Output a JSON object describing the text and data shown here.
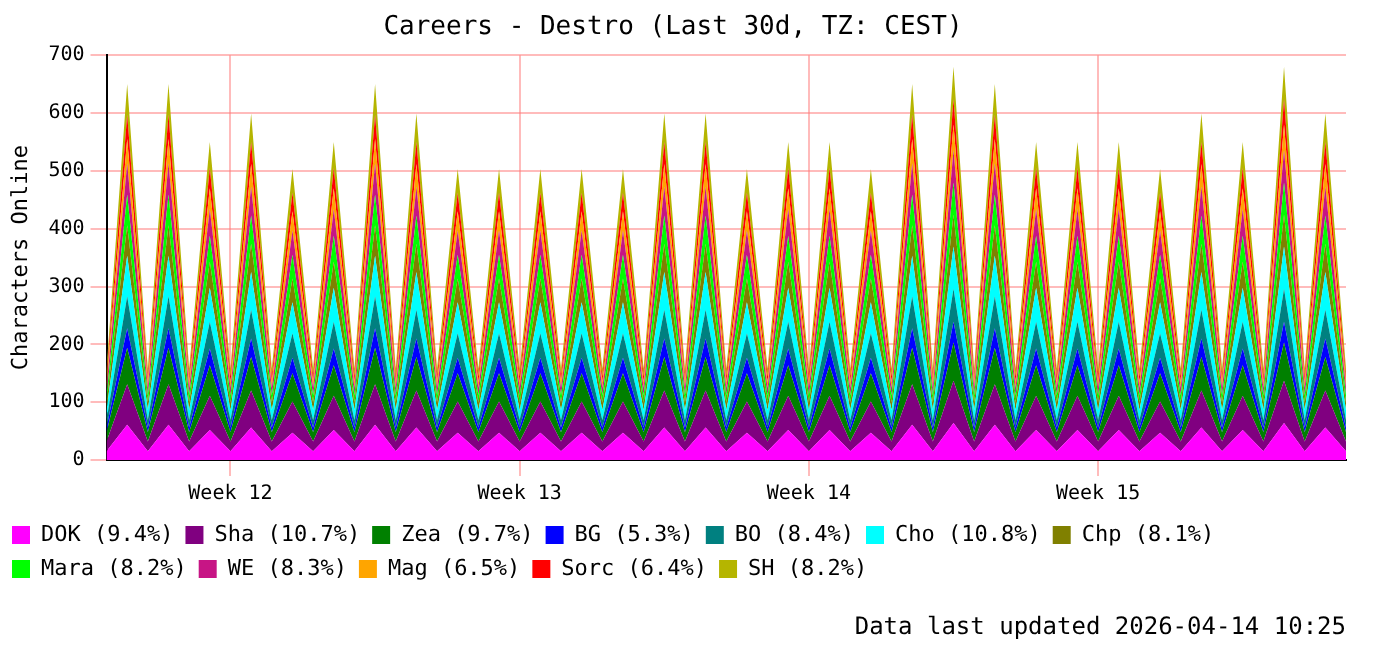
{
  "chart_data": {
    "type": "area",
    "title": "Careers - Destro (Last 30d, TZ: CEST)",
    "ylabel": "Characters Online",
    "stacked": true,
    "grid": true,
    "legend": "bottom",
    "annotations": [
      "Data last updated 2026-04-14 10:25"
    ],
    "categories": [
      null,
      null,
      null,
      null,
      null,
      null,
      "Week 12",
      null,
      null,
      null,
      null,
      null,
      null,
      null,
      null,
      null,
      null,
      null,
      null,
      null,
      "Week 13",
      null,
      null,
      null,
      null,
      null,
      null,
      null,
      null,
      null,
      null,
      null,
      null,
      null,
      "Week 14",
      null,
      null,
      null,
      null,
      null,
      null,
      null,
      null,
      null,
      null,
      null,
      null,
      null,
      "Week 15",
      null,
      null,
      null,
      null,
      null,
      null,
      null,
      null,
      null,
      null,
      null,
      null
    ],
    "ylim": [
      0,
      700
    ],
    "yticks": [
      0,
      100,
      200,
      300,
      400,
      500,
      600,
      700
    ],
    "series": [
      {
        "name": "DOK (9.4%)",
        "color": "#ff00ff",
        "values": [
          15,
          61,
          15,
          61,
          15,
          52,
          15,
          56,
          15,
          47,
          15,
          52,
          15,
          61,
          15,
          56,
          15,
          47,
          15,
          47,
          15,
          47,
          15,
          47,
          15,
          47,
          15,
          56,
          15,
          56,
          15,
          47,
          15,
          52,
          15,
          52,
          15,
          47,
          15,
          61,
          15,
          64,
          15,
          61,
          15,
          52,
          15,
          52,
          15,
          52,
          15,
          47,
          15,
          56,
          15,
          52,
          15,
          64,
          15,
          56,
          15
        ]
      },
      {
        "name": "Sha (10.7%)",
        "color": "#800080",
        "values": [
          17,
          70,
          17,
          70,
          17,
          59,
          17,
          64,
          17,
          54,
          17,
          59,
          17,
          70,
          17,
          64,
          17,
          54,
          17,
          54,
          17,
          54,
          17,
          54,
          17,
          54,
          17,
          64,
          17,
          64,
          17,
          54,
          17,
          59,
          17,
          59,
          17,
          54,
          17,
          70,
          17,
          73,
          17,
          70,
          17,
          59,
          17,
          59,
          17,
          59,
          17,
          54,
          17,
          64,
          17,
          59,
          17,
          73,
          17,
          64,
          17
        ]
      },
      {
        "name": "Zea (9.7%)",
        "color": "#008000",
        "values": [
          16,
          63,
          16,
          63,
          16,
          53,
          16,
          58,
          16,
          49,
          16,
          53,
          16,
          63,
          16,
          58,
          16,
          49,
          16,
          49,
          16,
          49,
          16,
          49,
          16,
          49,
          16,
          58,
          16,
          58,
          16,
          49,
          16,
          53,
          16,
          53,
          16,
          49,
          16,
          63,
          16,
          66,
          16,
          63,
          16,
          53,
          16,
          53,
          16,
          53,
          16,
          49,
          16,
          58,
          16,
          53,
          16,
          66,
          16,
          58,
          16
        ]
      },
      {
        "name": "BG (5.3%)",
        "color": "#0000ff",
        "values": [
          8,
          34,
          8,
          34,
          8,
          29,
          8,
          32,
          8,
          27,
          8,
          29,
          8,
          34,
          8,
          32,
          8,
          27,
          8,
          27,
          8,
          27,
          8,
          27,
          8,
          27,
          8,
          32,
          8,
          32,
          8,
          27,
          8,
          29,
          8,
          29,
          8,
          27,
          8,
          34,
          8,
          36,
          8,
          34,
          8,
          29,
          8,
          29,
          8,
          29,
          8,
          27,
          8,
          32,
          8,
          29,
          8,
          36,
          8,
          32,
          8
        ]
      },
      {
        "name": "BO (8.4%)",
        "color": "#008080",
        "values": [
          13,
          55,
          13,
          55,
          13,
          46,
          13,
          50,
          13,
          42,
          13,
          46,
          13,
          55,
          13,
          50,
          13,
          42,
          13,
          42,
          13,
          42,
          13,
          42,
          13,
          42,
          13,
          50,
          13,
          50,
          13,
          42,
          13,
          46,
          13,
          46,
          13,
          42,
          13,
          55,
          13,
          57,
          13,
          55,
          13,
          46,
          13,
          46,
          13,
          46,
          13,
          42,
          13,
          50,
          13,
          46,
          13,
          57,
          13,
          50,
          13
        ]
      },
      {
        "name": "Cho (10.8%)",
        "color": "#00ffff",
        "values": [
          17,
          70,
          17,
          70,
          17,
          59,
          17,
          65,
          17,
          54,
          17,
          59,
          17,
          70,
          17,
          65,
          17,
          54,
          17,
          54,
          17,
          54,
          17,
          54,
          17,
          54,
          17,
          65,
          17,
          65,
          17,
          54,
          17,
          59,
          17,
          59,
          17,
          54,
          17,
          70,
          17,
          73,
          17,
          70,
          17,
          59,
          17,
          59,
          17,
          59,
          17,
          54,
          17,
          65,
          17,
          59,
          17,
          73,
          17,
          65,
          17
        ]
      },
      {
        "name": "Chp (8.1%)",
        "color": "#808000",
        "values": [
          13,
          53,
          13,
          53,
          13,
          45,
          13,
          49,
          13,
          41,
          13,
          45,
          13,
          53,
          13,
          49,
          13,
          41,
          13,
          41,
          13,
          41,
          13,
          41,
          13,
          41,
          13,
          49,
          13,
          49,
          13,
          41,
          13,
          45,
          13,
          45,
          13,
          41,
          13,
          53,
          13,
          55,
          13,
          53,
          13,
          45,
          13,
          45,
          13,
          45,
          13,
          41,
          13,
          49,
          13,
          45,
          13,
          55,
          13,
          49,
          13
        ]
      },
      {
        "name": "Mara (8.2%)",
        "color": "#00ff00",
        "values": [
          13,
          53,
          13,
          53,
          13,
          45,
          13,
          49,
          13,
          41,
          13,
          45,
          13,
          53,
          13,
          49,
          13,
          41,
          13,
          41,
          13,
          41,
          13,
          41,
          13,
          41,
          13,
          49,
          13,
          49,
          13,
          41,
          13,
          45,
          13,
          45,
          13,
          41,
          13,
          53,
          13,
          56,
          13,
          53,
          13,
          45,
          13,
          45,
          13,
          45,
          13,
          41,
          13,
          49,
          13,
          45,
          13,
          56,
          13,
          49,
          13
        ]
      },
      {
        "name": "WE (8.3%)",
        "color": "#c71585",
        "values": [
          13,
          54,
          13,
          54,
          13,
          46,
          13,
          50,
          13,
          42,
          13,
          46,
          13,
          54,
          13,
          50,
          13,
          42,
          13,
          42,
          13,
          42,
          13,
          42,
          13,
          42,
          13,
          50,
          13,
          50,
          13,
          42,
          13,
          46,
          13,
          46,
          13,
          42,
          13,
          54,
          13,
          56,
          13,
          54,
          13,
          46,
          13,
          46,
          13,
          46,
          13,
          42,
          13,
          50,
          13,
          46,
          13,
          56,
          13,
          50,
          13
        ]
      },
      {
        "name": "Mag (6.5%)",
        "color": "#ffa500",
        "values": [
          10,
          42,
          10,
          42,
          10,
          36,
          10,
          39,
          10,
          33,
          10,
          36,
          10,
          42,
          10,
          39,
          10,
          33,
          10,
          33,
          10,
          33,
          10,
          33,
          10,
          33,
          10,
          39,
          10,
          39,
          10,
          33,
          10,
          36,
          10,
          36,
          10,
          33,
          10,
          42,
          10,
          44,
          10,
          42,
          10,
          36,
          10,
          36,
          10,
          36,
          10,
          33,
          10,
          39,
          10,
          36,
          10,
          44,
          10,
          39,
          10
        ]
      },
      {
        "name": "Sorc (6.4%)",
        "color": "#ff0000",
        "values": [
          10,
          42,
          10,
          42,
          10,
          35,
          10,
          38,
          10,
          32,
          10,
          35,
          10,
          42,
          10,
          38,
          10,
          32,
          10,
          32,
          10,
          32,
          10,
          32,
          10,
          32,
          10,
          38,
          10,
          38,
          10,
          32,
          10,
          35,
          10,
          35,
          10,
          32,
          10,
          42,
          10,
          44,
          10,
          42,
          10,
          35,
          10,
          35,
          10,
          35,
          10,
          32,
          10,
          38,
          10,
          35,
          10,
          44,
          10,
          38,
          10
        ]
      },
      {
        "name": "SH (8.2%)",
        "color": "#b5b500",
        "values": [
          13,
          53,
          13,
          53,
          13,
          45,
          13,
          49,
          13,
          41,
          13,
          45,
          13,
          53,
          13,
          49,
          13,
          41,
          13,
          41,
          13,
          41,
          13,
          41,
          13,
          41,
          13,
          49,
          13,
          49,
          13,
          41,
          13,
          45,
          13,
          45,
          13,
          41,
          13,
          53,
          13,
          56,
          13,
          53,
          13,
          45,
          13,
          45,
          13,
          45,
          13,
          41,
          13,
          49,
          13,
          45,
          13,
          56,
          13,
          49,
          13
        ]
      }
    ]
  }
}
